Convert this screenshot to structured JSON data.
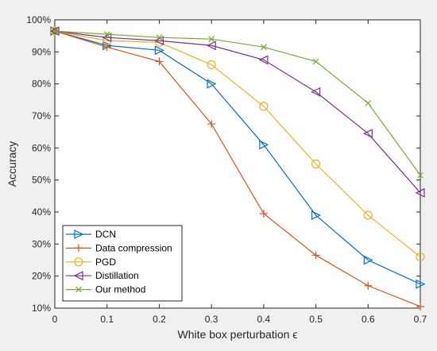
{
  "chart_data": {
    "type": "line",
    "xlabel": "White box perturbation ϵ",
    "ylabel": "Accuracy",
    "x": [
      0,
      0.1,
      0.2,
      0.3,
      0.4,
      0.5,
      0.6,
      0.7
    ],
    "xlim": [
      0,
      0.7
    ],
    "ylim": [
      10,
      100
    ],
    "x_ticks": [
      "0",
      "0.1",
      "0.2",
      "0.3",
      "0.4",
      "0.5",
      "0.6",
      "0.7"
    ],
    "y_ticks": [
      "10%",
      "20%",
      "30%",
      "40%",
      "50%",
      "60%",
      "70%",
      "80%",
      "90%",
      "100%"
    ],
    "grid": false,
    "legend_position": "bottom-left",
    "series": [
      {
        "name": "DCN",
        "color": "#0072BD",
        "marker": "triangle-right",
        "values": [
          96.5,
          92.0,
          90.5,
          80.0,
          61.0,
          39.0,
          25.0,
          17.5
        ]
      },
      {
        "name": "Data compression",
        "color": "#D95319",
        "marker": "plus",
        "values": [
          96.5,
          91.5,
          87.0,
          67.5,
          39.5,
          26.5,
          17.0,
          10.5
        ]
      },
      {
        "name": "PGD",
        "color": "#EDB120",
        "marker": "circle",
        "values": [
          96.5,
          93.5,
          93.0,
          86.0,
          73.0,
          55.0,
          39.0,
          26.0
        ]
      },
      {
        "name": "Distillation",
        "color": "#7E2F8E",
        "marker": "triangle-left",
        "values": [
          96.5,
          94.5,
          93.5,
          92.0,
          87.5,
          77.5,
          64.5,
          46.0
        ]
      },
      {
        "name": "Our method",
        "color": "#77AC30",
        "marker": "x",
        "values": [
          96.5,
          95.5,
          94.5,
          94.0,
          91.5,
          87.0,
          74.0,
          51.5
        ]
      }
    ]
  }
}
